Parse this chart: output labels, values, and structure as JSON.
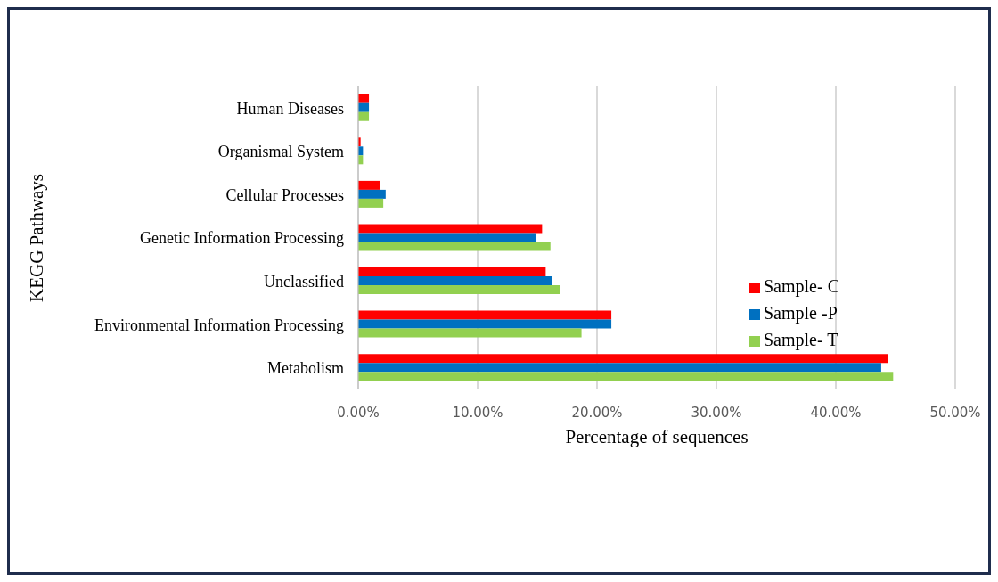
{
  "chart_data": {
    "type": "bar",
    "orientation": "horizontal",
    "xlabel": "Percentage of sequences",
    "ylabel": "KEGG Pathways",
    "categories": [
      "Human Diseases",
      "Organismal System",
      "Cellular Processes",
      "Genetic Information Processing",
      "Unclassified",
      "Environmental Information Processing",
      "Metabolism"
    ],
    "series": [
      {
        "name": "Sample- C",
        "color": "#ff0000",
        "values": [
          0.9,
          0.2,
          1.8,
          15.4,
          15.7,
          21.2,
          44.4
        ]
      },
      {
        "name": "Sample -P",
        "color": "#0070c0",
        "values": [
          0.9,
          0.4,
          2.3,
          14.9,
          16.2,
          21.2,
          43.8
        ]
      },
      {
        "name": "Sample- T",
        "color": "#92d050",
        "values": [
          0.9,
          0.4,
          2.1,
          16.1,
          16.9,
          18.7,
          44.8
        ]
      }
    ],
    "xlim": [
      0,
      50
    ],
    "xticks": [
      {
        "value": 0,
        "label": "0.00%"
      },
      {
        "value": 10,
        "label": "10.00%"
      },
      {
        "value": 20,
        "label": "20.00%"
      },
      {
        "value": 30,
        "label": "30.00%"
      },
      {
        "value": 40,
        "label": "40.00%"
      },
      {
        "value": 50,
        "label": "50.00%"
      }
    ],
    "grid": "x",
    "legend": "right"
  }
}
